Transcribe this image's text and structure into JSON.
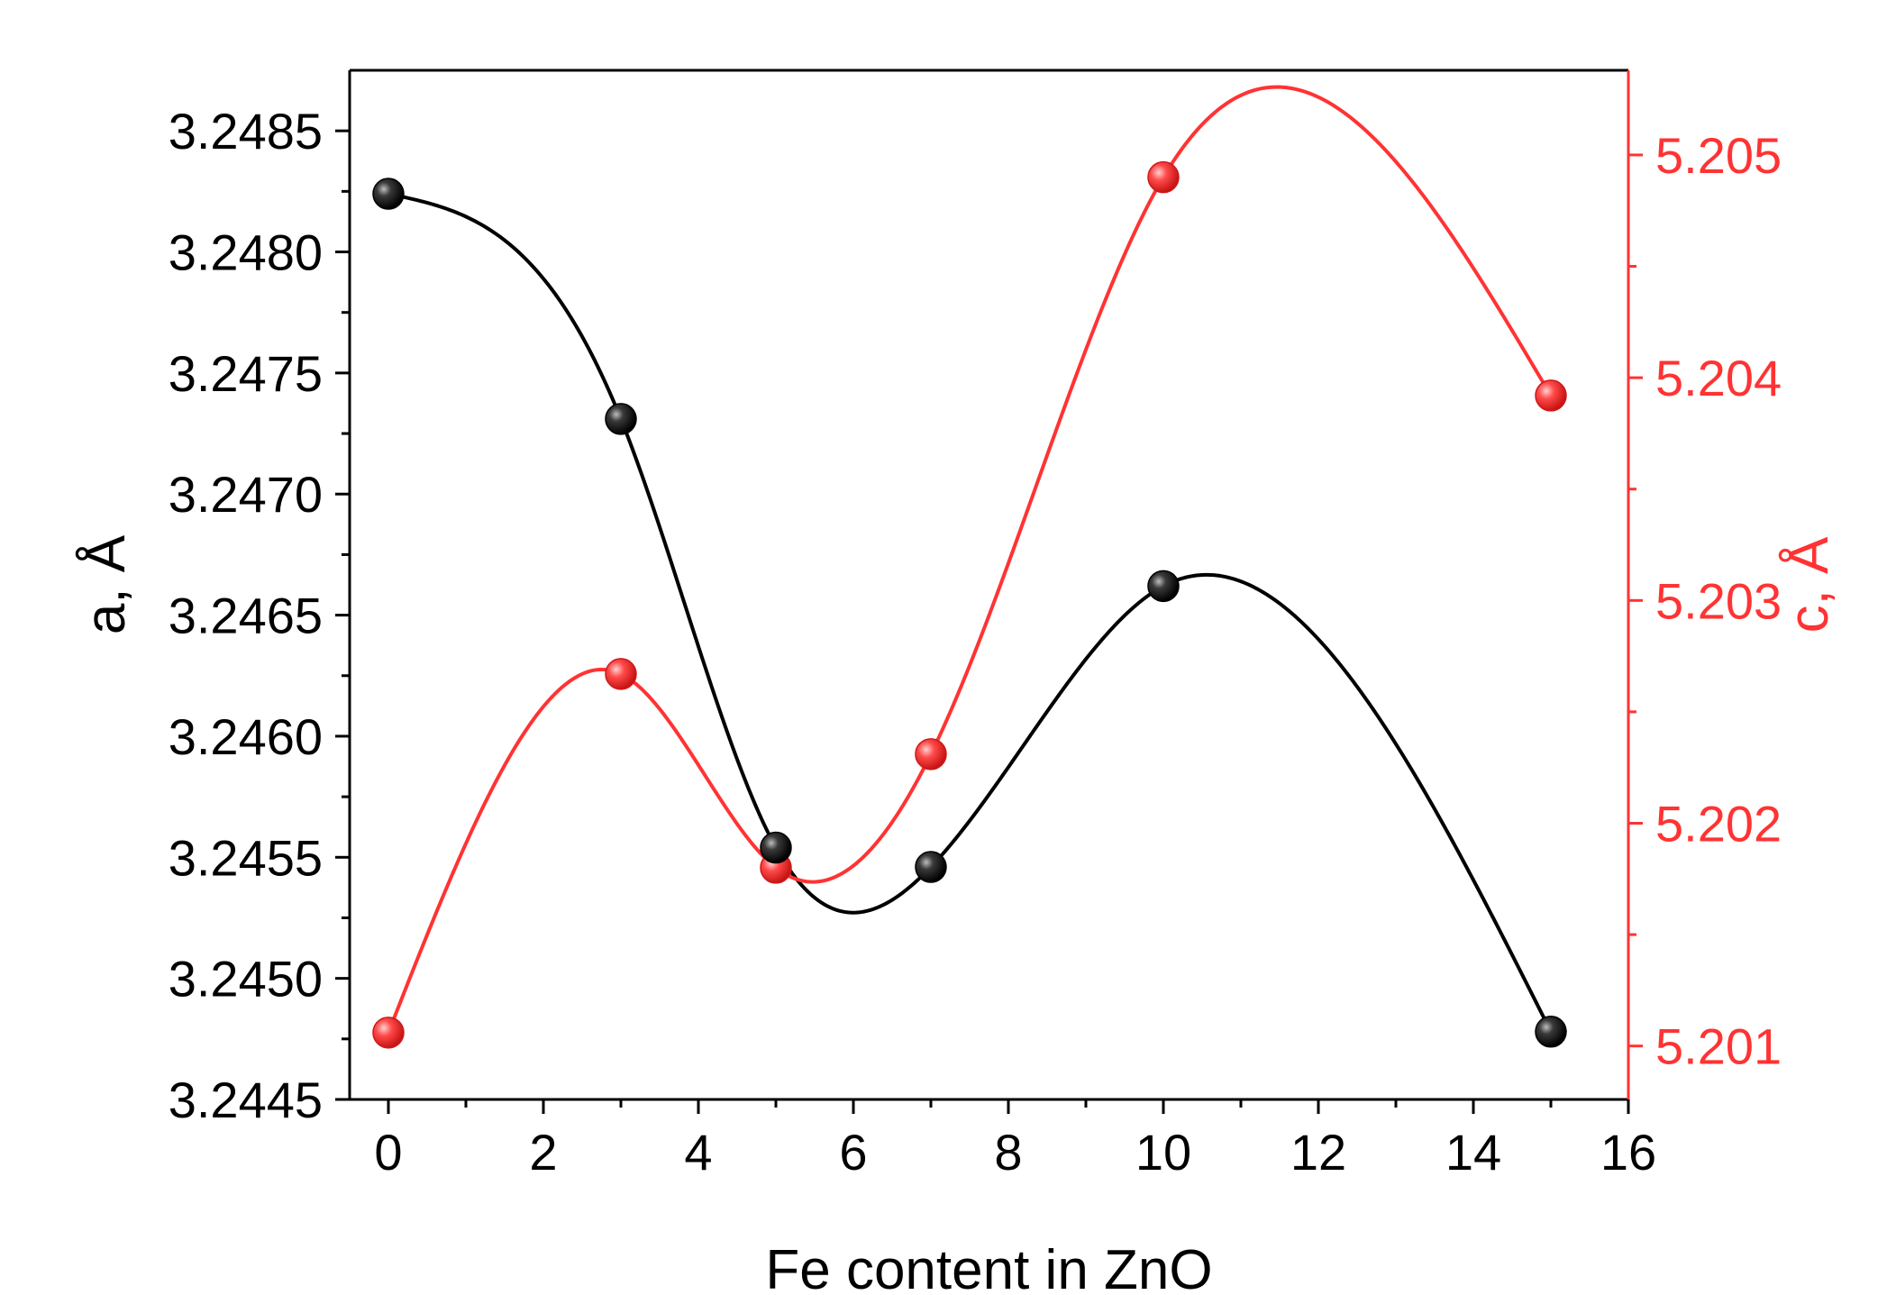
{
  "chart_data": {
    "type": "line",
    "xlabel": "Fe content in  ZnO",
    "x": [
      0,
      3,
      5,
      7,
      10,
      15
    ],
    "xlim": [
      -0.5,
      16
    ],
    "xticks": [
      0,
      2,
      4,
      6,
      8,
      10,
      12,
      14,
      16
    ],
    "x_tick_labels": [
      "0",
      "2",
      "4",
      "6",
      "8",
      "10",
      "12",
      "14",
      "16"
    ],
    "series": [
      {
        "axis": "left",
        "color": "#000000",
        "values": [
          3.24824,
          3.24731,
          3.24554,
          3.24546,
          3.24662,
          3.24478
        ],
        "smoothed": true,
        "marker": "sphere"
      },
      {
        "axis": "right",
        "color": "#ff3333",
        "values": [
          5.20106,
          5.20267,
          5.2018,
          5.20231,
          5.2049,
          5.20392
        ],
        "smoothed": true,
        "marker": "sphere"
      }
    ],
    "y_left": {
      "label": "a, Å",
      "color": "#000000",
      "ylim": [
        3.2445,
        3.24875
      ],
      "ticks": [
        3.2445,
        3.245,
        3.2455,
        3.246,
        3.2465,
        3.247,
        3.2475,
        3.248,
        3.2485
      ],
      "tick_labels": [
        "3.2445",
        "3.2450",
        "3.2455",
        "3.2460",
        "3.2465",
        "3.2470",
        "3.2475",
        "3.2480",
        "3.2485"
      ]
    },
    "y_right": {
      "label": "c, Å",
      "color": "#ff3333",
      "ylim": [
        5.20076,
        5.20538
      ],
      "ticks": [
        5.201,
        5.202,
        5.203,
        5.204,
        5.205
      ],
      "tick_labels": [
        "5.201",
        "5.202",
        "5.203",
        "5.204",
        "5.205"
      ]
    },
    "grid": false,
    "legend": "none"
  }
}
